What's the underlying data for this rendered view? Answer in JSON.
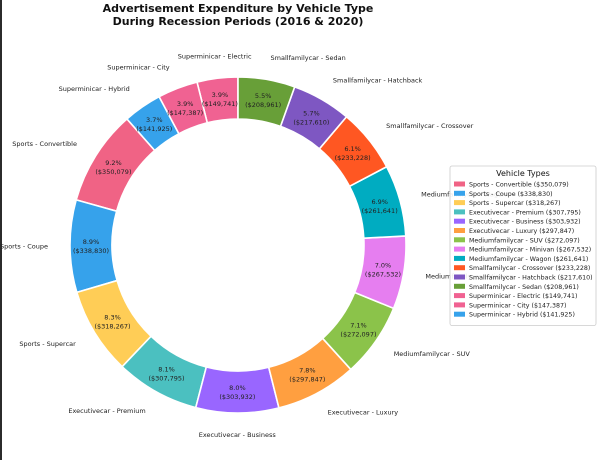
{
  "chart_data": {
    "type": "pie",
    "donut": true,
    "title": "Advertisement Expenditure by Vehicle Type\nDuring Recession Periods (2016 & 2020)",
    "legend": {
      "title": "Vehicle Types",
      "placement": "right"
    },
    "start_angle_deg": 90,
    "direction": "counterclockwise",
    "slices": [
      {
        "label": "Superminicar - Electric",
        "value": 149741,
        "percent": "3.9%",
        "value_label": "($149,741)",
        "legend": "Superminicar - Electric ($149,741)",
        "color": "#f06292"
      },
      {
        "label": "Superminicar - City",
        "value": 147387,
        "percent": "3.9%",
        "value_label": "($147,387)",
        "legend": "Superminicar - City ($147,387)",
        "color": "#f06292"
      },
      {
        "label": "Superminicar - Hybrid",
        "value": 141925,
        "percent": "3.7%",
        "value_label": "($141,925)",
        "legend": "Superminicar - Hybrid ($141,925)",
        "color": "#36a2eb"
      },
      {
        "label": "Sports - Convertible",
        "value": 350079,
        "percent": "9.2%",
        "value_label": "($350,079)",
        "legend": "Sports - Convertible ($350,079)",
        "color": "#f06385"
      },
      {
        "label": "Sports - Coupe",
        "value": 338830,
        "percent": "8.9%",
        "value_label": "($338,830)",
        "legend": "Sports - Coupe ($338,830)",
        "color": "#36a2eb"
      },
      {
        "label": "Sports - Supercar",
        "value": 318267,
        "percent": "8.3%",
        "value_label": "($318,267)",
        "legend": "Sports - Supercar ($318,267)",
        "color": "#ffcd56"
      },
      {
        "label": "Executivecar - Premium",
        "value": 307795,
        "percent": "8.1%",
        "value_label": "($307,795)",
        "legend": "Executivecar - Premium ($307,795)",
        "color": "#4bc0c0"
      },
      {
        "label": "Executivecar - Business",
        "value": 303932,
        "percent": "8.0%",
        "value_label": "($303,932)",
        "legend": "Executivecar - Business ($303,932)",
        "color": "#9966ff"
      },
      {
        "label": "Executivecar - Luxury",
        "value": 297847,
        "percent": "7.8%",
        "value_label": "($297,847)",
        "legend": "Executivecar - Luxury ($297,847)",
        "color": "#ff9f40"
      },
      {
        "label": "Mediumfamilycar - SUV",
        "value": 272097,
        "percent": "7.1%",
        "value_label": "($272,097)",
        "legend": "Mediumfamilycar - SUV ($272,097)",
        "color": "#8bc34a"
      },
      {
        "label": "Mediumfamilycar - Minivan",
        "value": 267532,
        "percent": "7.0%",
        "value_label": "($267,532)",
        "legend": "Mediumfamilycar - Minivan ($267,532)",
        "color": "#e67ef0"
      },
      {
        "label": "Mediumfamilycar - Wagon",
        "value": 261641,
        "percent": "6.9%",
        "value_label": "($261,641)",
        "legend": "Mediumfamilycar - Wagon ($261,641)",
        "color": "#00acc1"
      },
      {
        "label": "Smallfamilycar - Crossover",
        "value": 233228,
        "percent": "6.1%",
        "value_label": "($233,228)",
        "legend": "Smallfamilycar - Crossover ($233,228)",
        "color": "#ff5722"
      },
      {
        "label": "Smallfamilycar - Hatchback",
        "value": 217610,
        "percent": "5.7%",
        "value_label": "($217,610)",
        "legend": "Smallfamilycar - Hatchback ($217,610)",
        "color": "#7e57c2"
      },
      {
        "label": "Smallfamilycar - Sedan",
        "value": 208961,
        "percent": "5.5%",
        "value_label": "($208,961)",
        "legend": "Smallfamilycar - Sedan ($208,961)",
        "color": "#689f38"
      }
    ],
    "legend_order": [
      3,
      4,
      5,
      6,
      7,
      8,
      9,
      10,
      11,
      12,
      13,
      14,
      0,
      1,
      2
    ]
  }
}
